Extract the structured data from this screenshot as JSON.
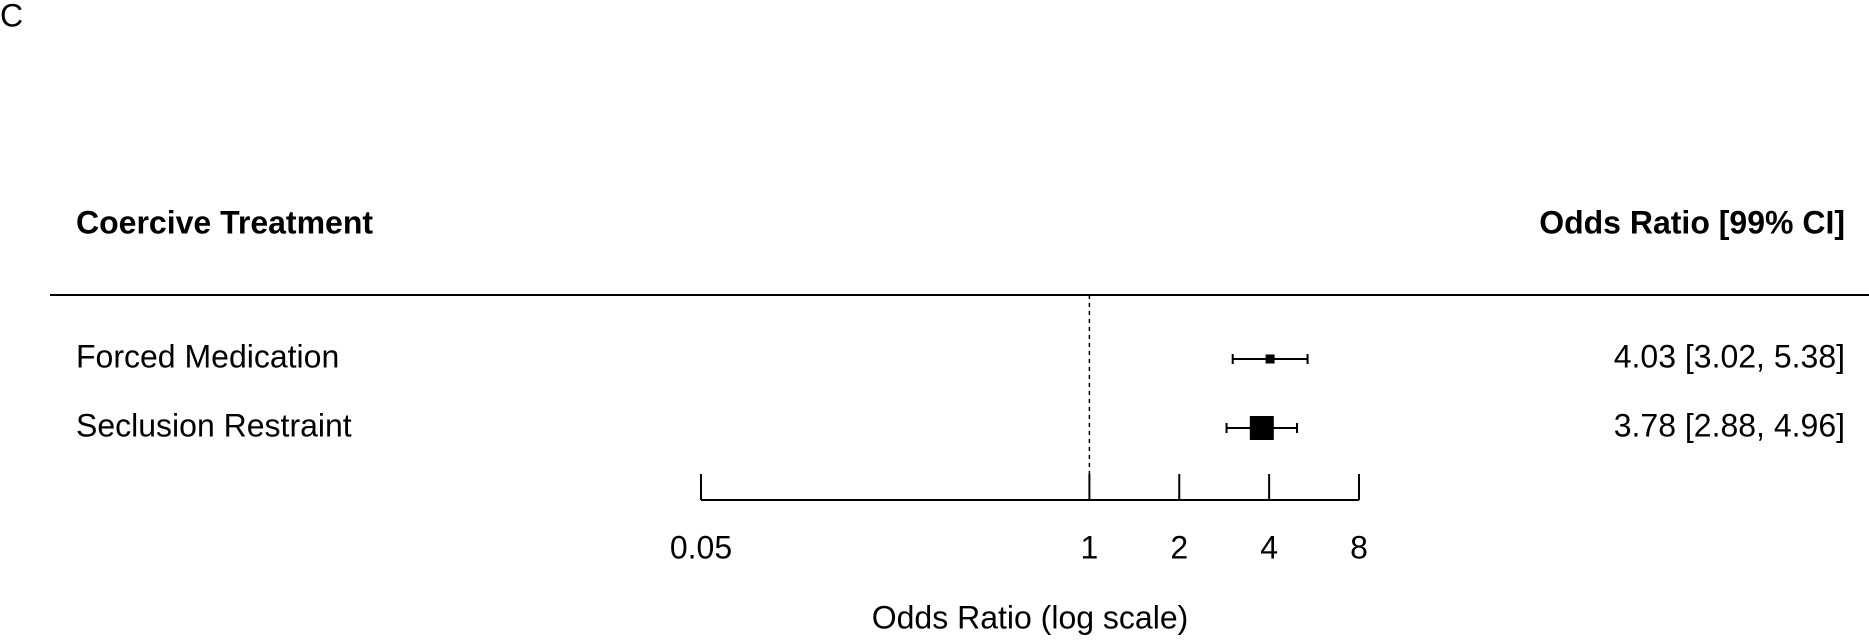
{
  "chart_data": {
    "type": "forest",
    "panel_label": "C",
    "label_header": "Coercive Treatment",
    "value_header": "Odds Ratio [99% CI]",
    "categories": [
      "Forced Medication",
      "Seclusion Restraint"
    ],
    "values": [
      4.03,
      3.78
    ],
    "ci_lower": [
      3.02,
      2.88
    ],
    "ci_upper": [
      5.38,
      4.96
    ],
    "value_labels": [
      "4.03 [3.02, 5.38]",
      "3.78 [2.88, 4.96]"
    ],
    "color": "#000000",
    "xlim": [
      0.05,
      8
    ],
    "xticks": [
      0.05,
      1,
      2,
      4,
      8
    ],
    "xlabel": "Odds Ratio (log scale)",
    "log_scale": true,
    "reference_line": 1
  }
}
